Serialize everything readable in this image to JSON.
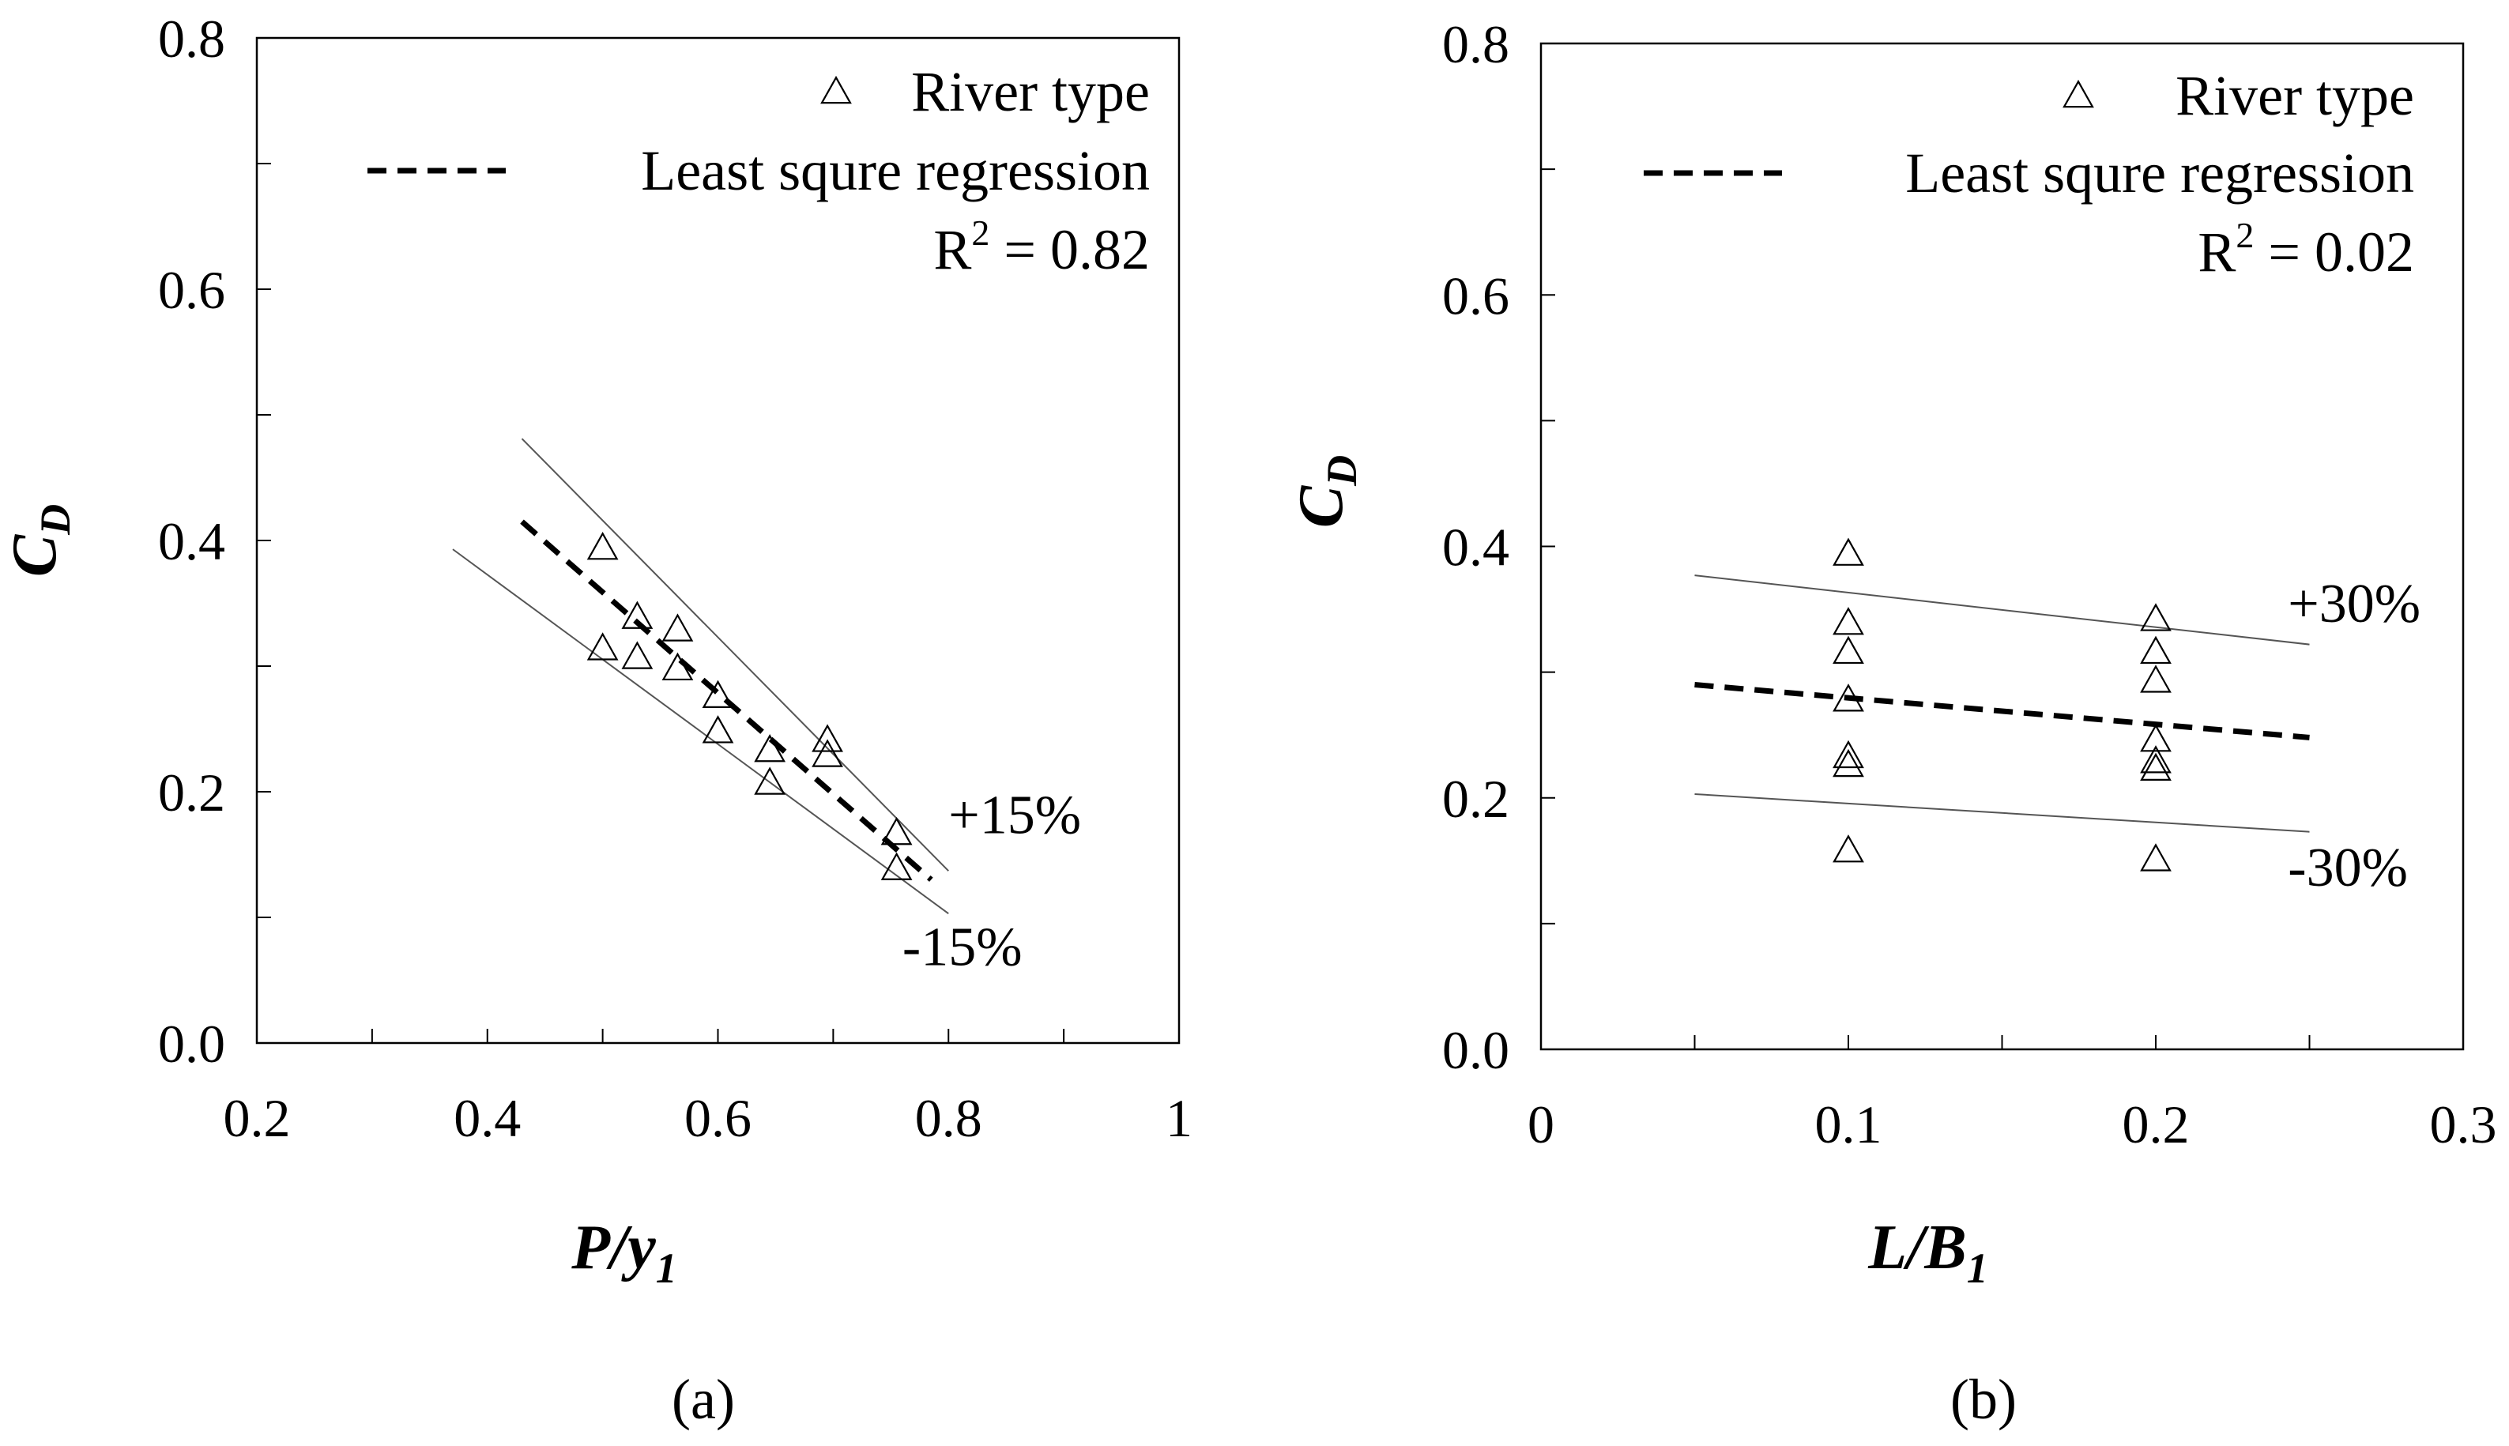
{
  "chart_data": [
    {
      "type": "scatter",
      "panel_label": "(a)",
      "xlabel": {
        "main": "P/y",
        "sub": "1"
      },
      "ylabel": {
        "main": "C",
        "sub": "D"
      },
      "xlim": [
        0.2,
        1.0
      ],
      "ylim": [
        0.0,
        0.8
      ],
      "x_tick_labels": [
        {
          "value": 0.2,
          "label": "0.2"
        },
        {
          "value": 0.4,
          "label": "0.4"
        },
        {
          "value": 0.6,
          "label": "0.6"
        },
        {
          "value": 0.8,
          "label": "0.8"
        },
        {
          "value": 1.0,
          "label": "1"
        }
      ],
      "y_tick_labels": [
        {
          "value": 0.0,
          "label": "0.0"
        },
        {
          "value": 0.2,
          "label": "0.2"
        },
        {
          "value": 0.4,
          "label": "0.4"
        },
        {
          "value": 0.6,
          "label": "0.6"
        },
        {
          "value": 0.8,
          "label": "0.8"
        }
      ],
      "x_minor_ticks": [
        0.3,
        0.5,
        0.7,
        0.9
      ],
      "y_minor_ticks": [
        0.1,
        0.3,
        0.5,
        0.7
      ],
      "legend": {
        "marker_label": "River type",
        "line_label": "Least squre regression",
        "r2_prefix": "R",
        "r2_sup": "2",
        "r2_value": " = 0.82"
      },
      "series": [
        {
          "name": "River type",
          "marker": "triangle",
          "points": [
            [
              0.5,
              0.393
            ],
            [
              0.5,
              0.313
            ],
            [
              0.53,
              0.338
            ],
            [
              0.53,
              0.306
            ],
            [
              0.565,
              0.328
            ],
            [
              0.565,
              0.297
            ],
            [
              0.6,
              0.275
            ],
            [
              0.6,
              0.247
            ],
            [
              0.645,
              0.232
            ],
            [
              0.645,
              0.206
            ],
            [
              0.695,
              0.24
            ],
            [
              0.695,
              0.228
            ],
            [
              0.755,
              0.166
            ],
            [
              0.755,
              0.138
            ]
          ]
        }
      ],
      "regression_line": {
        "style": "dashed",
        "from": [
          0.43,
          0.415
        ],
        "to": [
          0.785,
          0.13
        ]
      },
      "bands": [
        {
          "label": "+15%",
          "from": [
            0.43,
            0.481
          ],
          "to": [
            0.8,
            0.137
          ],
          "label_pos": [
            0.8,
            0.167
          ]
        },
        {
          "label": "-15%",
          "from": [
            0.37,
            0.393
          ],
          "to": [
            0.8,
            0.103
          ],
          "label_pos": [
            0.76,
            0.062
          ]
        }
      ]
    },
    {
      "type": "scatter",
      "panel_label": "(b)",
      "xlabel": {
        "main": "L/B",
        "sub": "1"
      },
      "ylabel": {
        "main": "C",
        "sub": "D"
      },
      "xlim": [
        0.0,
        0.3
      ],
      "ylim": [
        0.0,
        0.8
      ],
      "x_tick_labels": [
        {
          "value": 0.0,
          "label": "0"
        },
        {
          "value": 0.1,
          "label": "0.1"
        },
        {
          "value": 0.2,
          "label": "0.2"
        },
        {
          "value": 0.3,
          "label": "0.3"
        }
      ],
      "y_tick_labels": [
        {
          "value": 0.0,
          "label": "0.0"
        },
        {
          "value": 0.2,
          "label": "0.2"
        },
        {
          "value": 0.4,
          "label": "0.4"
        },
        {
          "value": 0.6,
          "label": "0.6"
        },
        {
          "value": 0.8,
          "label": "0.8"
        }
      ],
      "x_minor_ticks": [
        0.05,
        0.15,
        0.25
      ],
      "y_minor_ticks": [
        0.1,
        0.3,
        0.5,
        0.7
      ],
      "legend": {
        "marker_label": "River type",
        "line_label": "Least squre regression",
        "r2_prefix": "R",
        "r2_sup": "2",
        "r2_value": " = 0.02"
      },
      "series": [
        {
          "name": "River type",
          "marker": "triangle",
          "points": [
            [
              0.1,
              0.393
            ],
            [
              0.1,
              0.338
            ],
            [
              0.1,
              0.315
            ],
            [
              0.1,
              0.277
            ],
            [
              0.1,
              0.232
            ],
            [
              0.1,
              0.225
            ],
            [
              0.1,
              0.157
            ],
            [
              0.2,
              0.341
            ],
            [
              0.2,
              0.315
            ],
            [
              0.2,
              0.292
            ],
            [
              0.2,
              0.245
            ],
            [
              0.2,
              0.228
            ],
            [
              0.2,
              0.222
            ],
            [
              0.2,
              0.15
            ]
          ]
        }
      ],
      "regression_line": {
        "style": "dashed",
        "from": [
          0.05,
          0.29
        ],
        "to": [
          0.25,
          0.248
        ]
      },
      "bands": [
        {
          "label": "+30%",
          "from": [
            0.05,
            0.377
          ],
          "to": [
            0.25,
            0.322
          ],
          "label_pos": [
            0.243,
            0.34
          ]
        },
        {
          "label": "-30%",
          "from": [
            0.05,
            0.203
          ],
          "to": [
            0.25,
            0.173
          ],
          "label_pos": [
            0.243,
            0.13
          ]
        }
      ]
    }
  ]
}
